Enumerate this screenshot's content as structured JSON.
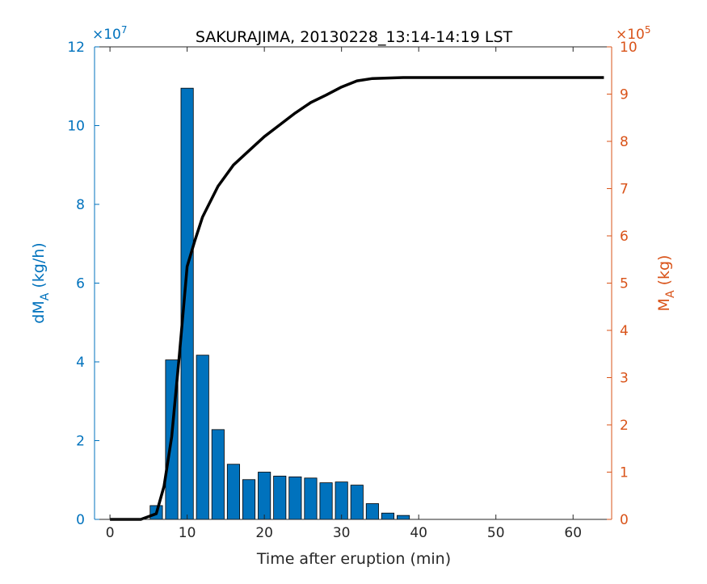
{
  "chart_data": {
    "type": "bar",
    "title": "SAKURAJIMA, 20130228_13:14-14:19 LST",
    "xlabel": "Time after eruption (min)",
    "ylabel_left": {
      "main": "dM",
      "sub": "A",
      "unit": " (kg/h)"
    },
    "ylabel_right": {
      "main": "M",
      "sub": "A",
      "unit": " (kg)"
    },
    "xlim": [
      -2,
      65
    ],
    "ylim_left": [
      0,
      12
    ],
    "ylim_right": [
      0,
      10
    ],
    "x_ticks": [
      0,
      10,
      20,
      30,
      40,
      50,
      60
    ],
    "y_ticks_left": [
      0,
      2,
      4,
      6,
      8,
      10,
      12
    ],
    "y_ticks_right": [
      0,
      1,
      2,
      3,
      4,
      5,
      6,
      7,
      8,
      9,
      10
    ],
    "left_exponent": {
      "base": "×10",
      "power": "7"
    },
    "right_exponent": {
      "base": "×10",
      "power": "5"
    },
    "colors": {
      "bars": "#0072BD",
      "left_axis": "#0072BD",
      "right_axis": "#D95319",
      "line": "#000000",
      "axes": "#262626"
    },
    "series": [
      {
        "name": "dM_A",
        "axis": "left",
        "kind": "bar",
        "x": [
          6,
          8,
          10,
          12,
          14,
          16,
          18,
          20,
          22,
          24,
          26,
          28,
          30,
          32,
          34,
          36,
          38
        ],
        "values": [
          0.35,
          4.05,
          10.95,
          4.17,
          2.28,
          1.4,
          1.01,
          1.2,
          1.1,
          1.08,
          1.05,
          0.93,
          0.95,
          0.87,
          0.4,
          0.16,
          0.1
        ]
      },
      {
        "name": "M_A",
        "axis": "right",
        "kind": "line",
        "x": [
          0,
          4,
          6,
          7,
          8,
          9,
          10,
          11,
          12,
          14,
          16,
          18,
          20,
          22,
          24,
          26,
          28,
          30,
          32,
          34,
          36,
          38,
          40,
          64
        ],
        "values": [
          0,
          0,
          0.12,
          0.7,
          1.75,
          3.5,
          5.35,
          5.9,
          6.4,
          7.05,
          7.5,
          7.8,
          8.1,
          8.35,
          8.6,
          8.82,
          8.98,
          9.15,
          9.28,
          9.33,
          9.34,
          9.35,
          9.35,
          9.35
        ]
      }
    ]
  }
}
